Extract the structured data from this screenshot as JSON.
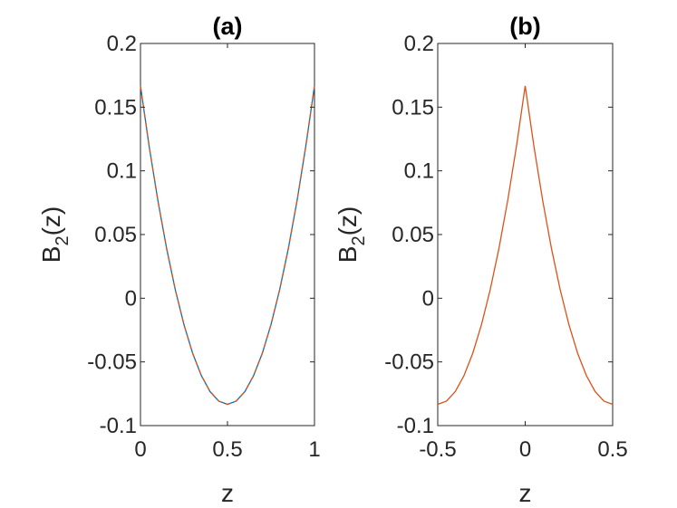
{
  "chart_data": [
    {
      "type": "line",
      "title": "(a)",
      "xlabel": "z",
      "ylabel": "B",
      "ylabel_sub": "2",
      "ylabel_suffix": "(z)",
      "xlim": [
        0,
        1
      ],
      "ylim": [
        -0.1,
        0.2
      ],
      "xticks": [
        0,
        0.5,
        1
      ],
      "xtick_labels": [
        "0",
        "0.5",
        "1"
      ],
      "yticks": [
        -0.1,
        -0.05,
        0,
        0.05,
        0.1,
        0.15,
        0.2
      ],
      "ytick_labels": [
        "-0.1",
        "-0.05",
        "0",
        "0.05",
        "0.1",
        "0.15",
        "0.2"
      ],
      "grid": false,
      "series": [
        {
          "name": "series-1",
          "color": "#0072BD",
          "style": "solid",
          "x": [
            0,
            0.05,
            0.1,
            0.15,
            0.2,
            0.25,
            0.3,
            0.35,
            0.4,
            0.45,
            0.5,
            0.55,
            0.6,
            0.65,
            0.7,
            0.75,
            0.8,
            0.85,
            0.9,
            0.95,
            1
          ],
          "y": [
            0.1667,
            0.1192,
            0.0767,
            0.0392,
            0.0067,
            -0.0208,
            -0.0433,
            -0.0608,
            -0.0733,
            -0.0808,
            -0.0833,
            -0.0808,
            -0.0733,
            -0.0608,
            -0.0433,
            -0.0208,
            0.0067,
            0.0392,
            0.0767,
            0.1192,
            0.1667
          ]
        },
        {
          "name": "series-2",
          "color": "#D95319",
          "style": "dashed",
          "x": [
            0,
            0.05,
            0.1,
            0.15,
            0.2,
            0.25,
            0.3,
            0.35,
            0.4,
            0.45,
            0.5,
            0.55,
            0.6,
            0.65,
            0.7,
            0.75,
            0.8,
            0.85,
            0.9,
            0.95,
            1
          ],
          "y": [
            0.1667,
            0.1192,
            0.0767,
            0.0392,
            0.0067,
            -0.0208,
            -0.0433,
            -0.0608,
            -0.0733,
            -0.0808,
            -0.0833,
            -0.0808,
            -0.0733,
            -0.0608,
            -0.0433,
            -0.0208,
            0.0067,
            0.0392,
            0.0767,
            0.1192,
            0.1667
          ]
        }
      ]
    },
    {
      "type": "line",
      "title": "(b)",
      "xlabel": "z",
      "ylabel": "B",
      "ylabel_sub": "2",
      "ylabel_suffix": "(z)",
      "xlim": [
        -0.5,
        0.5
      ],
      "ylim": [
        -0.1,
        0.2
      ],
      "xticks": [
        -0.5,
        0,
        0.5
      ],
      "xtick_labels": [
        "-0.5",
        "0",
        "0.5"
      ],
      "yticks": [
        -0.1,
        -0.05,
        0,
        0.05,
        0.1,
        0.15,
        0.2
      ],
      "ytick_labels": [
        "-0.1",
        "-0.05",
        "0",
        "0.05",
        "0.1",
        "0.15",
        "0.2"
      ],
      "grid": false,
      "series": [
        {
          "name": "series-1",
          "color": "#D95319",
          "style": "solid",
          "x": [
            -0.5,
            -0.45,
            -0.4,
            -0.35,
            -0.3,
            -0.25,
            -0.2,
            -0.15,
            -0.1,
            -0.05,
            0,
            0.05,
            0.1,
            0.15,
            0.2,
            0.25,
            0.3,
            0.35,
            0.4,
            0.45,
            0.5
          ],
          "y": [
            -0.0833,
            -0.0808,
            -0.0733,
            -0.0608,
            -0.0433,
            -0.0208,
            0.0067,
            0.0392,
            0.0767,
            0.1192,
            0.1667,
            0.1192,
            0.0767,
            0.0392,
            0.0067,
            -0.0208,
            -0.0433,
            -0.0608,
            -0.0733,
            -0.0808,
            -0.0833
          ]
        }
      ]
    }
  ]
}
